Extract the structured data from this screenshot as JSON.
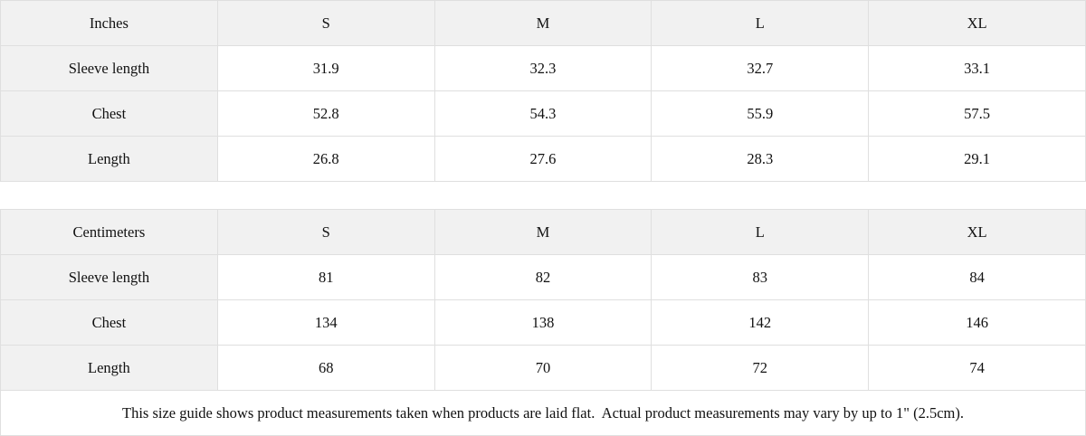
{
  "chart_data": [
    {
      "type": "table",
      "title": "Inches",
      "columns": [
        "S",
        "M",
        "L",
        "XL"
      ],
      "rows": [
        {
          "label": "Sleeve length",
          "values": [
            "31.9",
            "32.3",
            "32.7",
            "33.1"
          ]
        },
        {
          "label": "Chest",
          "values": [
            "52.8",
            "54.3",
            "55.9",
            "57.5"
          ]
        },
        {
          "label": "Length",
          "values": [
            "26.8",
            "27.6",
            "28.3",
            "29.1"
          ]
        }
      ]
    },
    {
      "type": "table",
      "title": "Centimeters",
      "columns": [
        "S",
        "M",
        "L",
        "XL"
      ],
      "rows": [
        {
          "label": "Sleeve length",
          "values": [
            "81",
            "82",
            "83",
            "84"
          ]
        },
        {
          "label": "Chest",
          "values": [
            "134",
            "138",
            "142",
            "146"
          ]
        },
        {
          "label": "Length",
          "values": [
            "68",
            "70",
            "72",
            "74"
          ]
        }
      ]
    }
  ],
  "note": "This size guide shows product measurements taken when products are laid flat.  Actual product measurements may vary by up to 1\" (2.5cm).",
  "colors": {
    "shaded_cell_bg": "#f1f1f1",
    "border": "#dfdfdf",
    "text": "#111111",
    "background": "#ffffff"
  }
}
